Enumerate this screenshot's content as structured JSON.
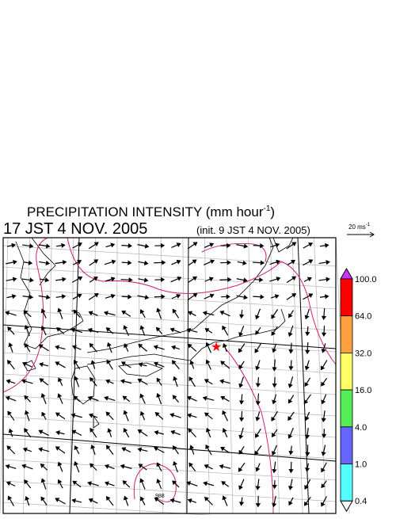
{
  "header": {
    "title": "PRECIPITATION INTENSITY (mm hour",
    "title_exponent": "-1",
    "title_close": ")",
    "valid_time": "17 JST 4 NOV. 2005",
    "init_time": "(init. 9 JST 4 NOV. 2005)"
  },
  "vector_reference": {
    "label": "20 ms",
    "exponent": "-1"
  },
  "colorbar": {
    "over_color": "#cc33ff",
    "under_color": "#ffffff",
    "levels": [
      "100.0",
      "64.0",
      "32.0",
      "16.0",
      "4.0",
      "1.0",
      "0.4"
    ],
    "colors": [
      "#ff0000",
      "#ffa040",
      "#ffff66",
      "#55ee55",
      "#6666ff",
      "#55ffff"
    ]
  },
  "map": {
    "contour_label": "988"
  }
}
